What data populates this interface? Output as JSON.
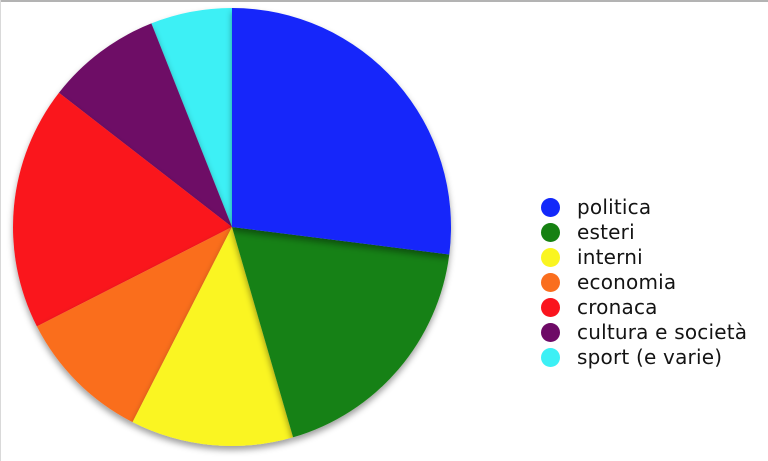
{
  "page": {
    "background_color": "#ffffff",
    "top_border_color": "#b3b3b3"
  },
  "chart_data": {
    "type": "pie",
    "title": "",
    "legend_position": "right",
    "start_angle_deg": 0,
    "direction": "clockwise",
    "slices": [
      {
        "label": "politica",
        "value_pct": 27,
        "color": "#1228fa"
      },
      {
        "label": "esteri",
        "value_pct": 18.5,
        "color": "#168112"
      },
      {
        "label": "interni",
        "value_pct": 12,
        "color": "#faf520"
      },
      {
        "label": "economia",
        "value_pct": 10,
        "color": "#fa6e1e"
      },
      {
        "label": "cronaca",
        "value_pct": 18,
        "color": "#fa141e"
      },
      {
        "label": "cultura e società",
        "value_pct": 8.5,
        "color": "#6e0a66"
      },
      {
        "label": "sport (e varie)",
        "value_pct": 6,
        "color": "#3cf0f5"
      }
    ]
  }
}
